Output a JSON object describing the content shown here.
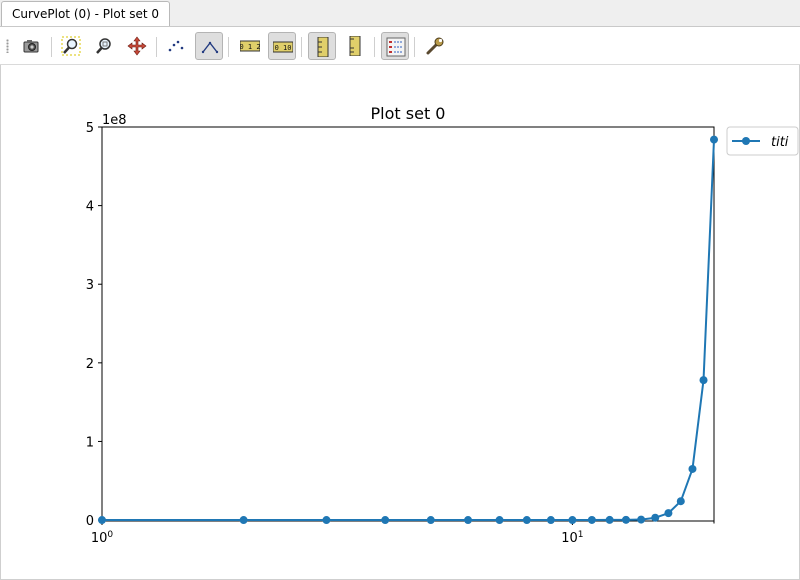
{
  "tab": {
    "title": "CurvePlot (0) - Plot set 0"
  },
  "toolbar": {
    "buttons": [
      {
        "icon": "camera-icon",
        "active": false
      },
      {
        "icon": "zoom-icon",
        "active": false
      },
      {
        "icon": "zoom-fit-icon",
        "active": false
      },
      {
        "icon": "pan-icon",
        "active": false
      },
      {
        "icon": "points-mode-icon",
        "active": false
      },
      {
        "icon": "lines-mode-icon",
        "active": true
      },
      {
        "icon": "linear-x-scale-icon",
        "active": false
      },
      {
        "icon": "log-x-scale-icon",
        "active": true
      },
      {
        "icon": "linear-y-scale-icon",
        "active": true
      },
      {
        "icon": "log-y-scale-icon",
        "active": false
      },
      {
        "icon": "legend-icon",
        "active": true
      },
      {
        "icon": "settings-wrench-icon",
        "active": false
      }
    ]
  },
  "chart_data": {
    "type": "line",
    "title": "Plot set 0",
    "xscale": "log",
    "xlim": [
      1,
      20
    ],
    "ylim": [
      -1200000,
      500000000
    ],
    "y_offset_label": "1e8",
    "x_major_ticks": [
      {
        "value": 1,
        "base": "10",
        "exp": "0"
      },
      {
        "value": 10,
        "base": "10",
        "exp": "1"
      }
    ],
    "y_ticks": [
      {
        "value": 0,
        "label": "0"
      },
      {
        "value": 100000000,
        "label": "1"
      },
      {
        "value": 200000000,
        "label": "2"
      },
      {
        "value": 300000000,
        "label": "3"
      },
      {
        "value": 400000000,
        "label": "4"
      },
      {
        "value": 500000000,
        "label": "5"
      }
    ],
    "series": [
      {
        "name": "titi",
        "color": "#1f77b4",
        "x": [
          1,
          2,
          3,
          4,
          5,
          6,
          7,
          8,
          9,
          10,
          11,
          12,
          13,
          14,
          15,
          16,
          17,
          18,
          19,
          20
        ],
        "y": [
          0,
          0,
          0,
          0,
          0,
          0,
          0,
          0,
          0,
          0,
          100000,
          200000,
          300000,
          600000,
          3000000,
          8800000,
          24000000,
          65000000,
          178000000,
          484000000
        ]
      }
    ],
    "legend": {
      "placement": "outside-top-right",
      "labels": [
        "titi"
      ]
    },
    "grid": false
  }
}
